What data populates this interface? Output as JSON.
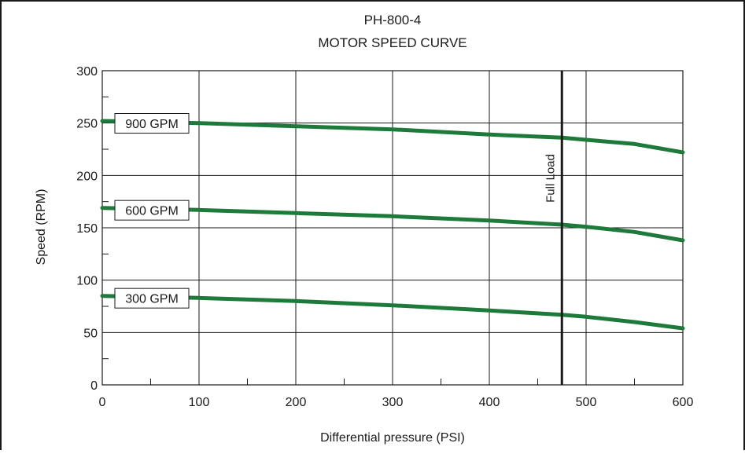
{
  "chart_data": {
    "type": "line",
    "title": "PH-800-4",
    "subtitle": "MOTOR SPEED CURVE",
    "xlabel": "Differential pressure (PSI)",
    "ylabel": "Speed (RPM)",
    "xlim": [
      0,
      600
    ],
    "ylim": [
      0,
      300
    ],
    "x_ticks": [
      0,
      100,
      200,
      300,
      400,
      500,
      600
    ],
    "y_ticks": [
      0,
      50,
      100,
      150,
      200,
      250,
      300
    ],
    "x_minor_step": 50,
    "y_minor_step": 25,
    "grid": true,
    "line_color": "#1e7a3a",
    "series": [
      {
        "name": "900 GPM",
        "x": [
          0,
          100,
          200,
          300,
          400,
          475,
          500,
          550,
          600
        ],
        "values": [
          252,
          250,
          247,
          244,
          239,
          236,
          234,
          230,
          222
        ]
      },
      {
        "name": "600 GPM",
        "x": [
          0,
          100,
          200,
          300,
          400,
          475,
          500,
          550,
          600
        ],
        "values": [
          169,
          167,
          164,
          161,
          157,
          153,
          151,
          146,
          138
        ]
      },
      {
        "name": "300 GPM",
        "x": [
          0,
          100,
          200,
          300,
          400,
          475,
          500,
          550,
          600
        ],
        "values": [
          85,
          83,
          80,
          76,
          71,
          67,
          65,
          60,
          54
        ]
      }
    ],
    "annotations": [
      {
        "type": "vline",
        "x": 475,
        "label": "Full Load"
      }
    ]
  }
}
